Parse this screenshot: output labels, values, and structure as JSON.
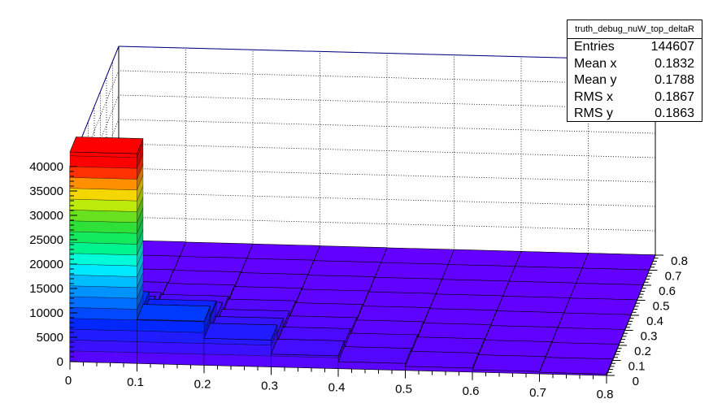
{
  "chart_data": {
    "type": "lego3d",
    "x_ticks": [
      "0",
      "0.1",
      "0.2",
      "0.3",
      "0.4",
      "0.5",
      "0.6",
      "0.7",
      "0.8"
    ],
    "y_ticks": [
      "0",
      "0.1",
      "0.2",
      "0.3",
      "0.4",
      "0.5",
      "0.6",
      "0.7",
      "0.8"
    ],
    "z_ticks": [
      "0",
      "5000",
      "10000",
      "15000",
      "20000",
      "25000",
      "30000",
      "35000",
      "40000"
    ],
    "x_range": [
      0,
      0.8
    ],
    "y_range": [
      0,
      0.8
    ],
    "z_range": [
      0,
      40000
    ],
    "bin_values": [
      [
        43000,
        8500,
        4500,
        2200,
        1200,
        700,
        400,
        250
      ],
      [
        9000,
        7000,
        3600,
        1800,
        1000,
        600,
        350,
        200
      ],
      [
        5500,
        3800,
        2200,
        1200,
        700,
        450,
        280,
        180
      ],
      [
        2600,
        2000,
        1200,
        800,
        500,
        320,
        200,
        130
      ],
      [
        1400,
        1100,
        700,
        500,
        320,
        220,
        150,
        100
      ],
      [
        800,
        650,
        450,
        320,
        220,
        150,
        110,
        80
      ],
      [
        450,
        380,
        280,
        200,
        150,
        110,
        80,
        60
      ],
      [
        280,
        230,
        180,
        130,
        100,
        80,
        60,
        45
      ]
    ],
    "palette": "rainbow",
    "grid": true
  },
  "stats": {
    "title": "truth_debug_nuW_top_deltaR",
    "rows": [
      {
        "label": "Entries",
        "value": "144607"
      },
      {
        "label": "Mean x",
        "value": "0.1832"
      },
      {
        "label": "Mean y",
        "value": "0.1788"
      },
      {
        "label": "RMS x",
        "value": "0.1867"
      },
      {
        "label": "RMS y",
        "value": "0.1863"
      }
    ]
  }
}
